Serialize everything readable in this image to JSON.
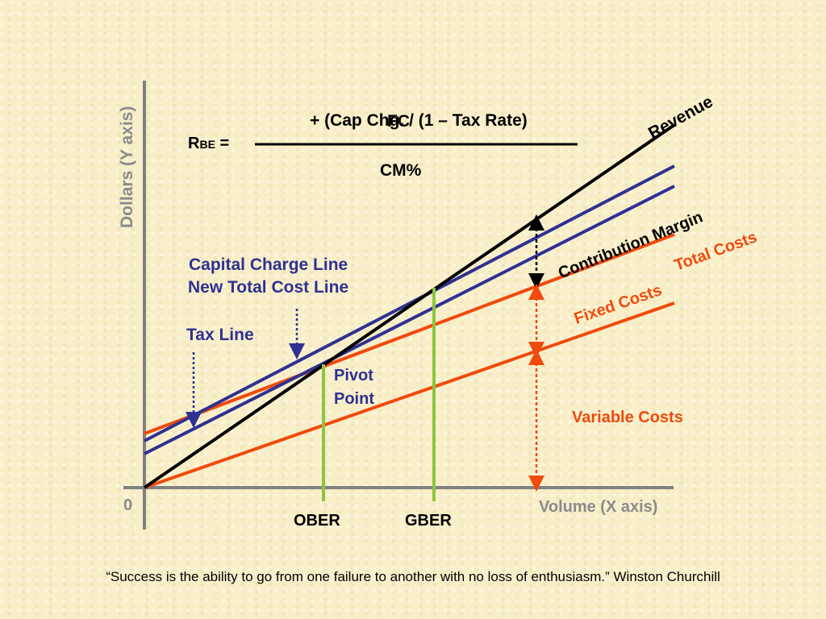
{
  "formula": {
    "lhs_main": "R",
    "lhs_sub": "BE",
    "lhs_eq": " =",
    "numerator_overlap": "FC",
    "numerator": "+ (Cap Chg. / (1 – Tax Rate)",
    "denominator": "CM%"
  },
  "axes": {
    "y_label": "Dollars (Y axis)",
    "x_label": "Volume (X axis)",
    "origin": "0"
  },
  "lines": {
    "revenue": "Revenue",
    "contribution_margin": "Contribution Margin",
    "total_costs": "Total Costs",
    "fixed_costs": "Fixed Costs",
    "variable_costs": "Variable Costs",
    "capital_charge_line": "Capital Charge Line",
    "new_total_cost_line": "New Total Cost Line",
    "tax_line": "Tax Line",
    "pivot_point_1": "Pivot",
    "pivot_point_2": "Point"
  },
  "markers": {
    "ober": "OBER",
    "gber": "GBER"
  },
  "quote": "“Success is the ability to go from one failure to another with no loss of enthusiasm.” Winston Churchill",
  "colors": {
    "revenue": "#000000",
    "cost_lines": "#f04a0c",
    "capital_tax_lines": "#2e3192",
    "break_even_markers": "#8cc63f",
    "axes": "#808080"
  }
}
